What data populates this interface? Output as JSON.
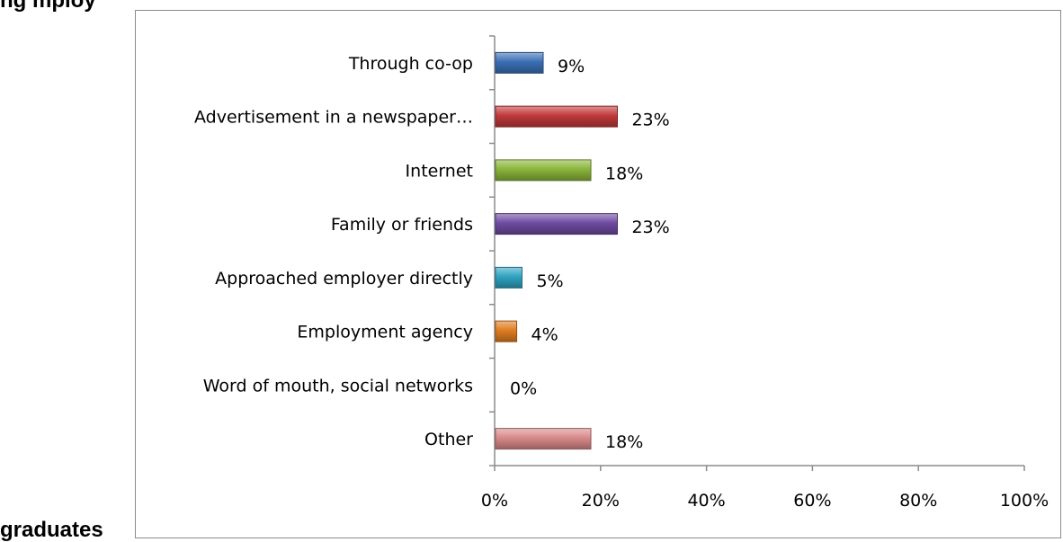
{
  "page": {
    "top_title_fragment": "ng     mploy",
    "bottom_fragment": "graduates"
  },
  "chart_data": {
    "type": "bar",
    "orientation": "horizontal",
    "categories": [
      "Through co-op",
      "Advertisement in a newspaper…",
      "Internet",
      "Family or friends",
      "Approached employer directly",
      "Employment agency",
      "Word of mouth, social networks",
      "Other"
    ],
    "values": [
      9,
      23,
      18,
      23,
      5,
      4,
      0,
      18
    ],
    "data_labels": [
      "9%",
      "23%",
      "18%",
      "23%",
      "5%",
      "4%",
      "0%",
      "18%"
    ],
    "colors": [
      "#3a6fb5",
      "#c0393a",
      "#8ab53a",
      "#6e4ba1",
      "#2fa3c1",
      "#e07d21",
      "#808080",
      "#d98a8a"
    ],
    "xlim": [
      0,
      100
    ],
    "xticks": [
      0,
      20,
      40,
      60,
      80,
      100
    ],
    "xtick_labels": [
      "0%",
      "20%",
      "40%",
      "60%",
      "80%",
      "100%"
    ],
    "grid": false,
    "legend": "none",
    "title": "",
    "xlabel": "",
    "ylabel": ""
  }
}
